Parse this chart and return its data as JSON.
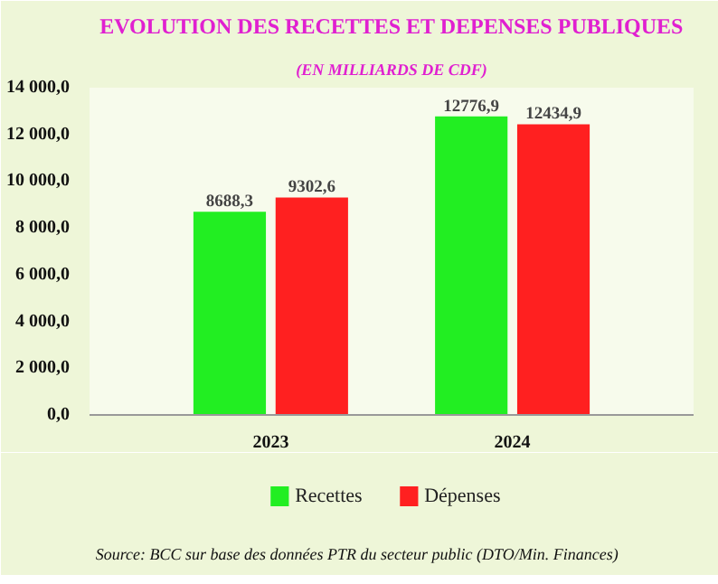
{
  "chart_data": {
    "type": "bar",
    "title": "EVOLUTION DES RECETTES ET DEPENSES PUBLIQUES",
    "subtitle": "(EN MILLIARDS DE CDF)",
    "categories": [
      "2023",
      "2024"
    ],
    "series": [
      {
        "name": "Recettes",
        "color": "#22ee22",
        "values": [
          8688.3,
          12776.9
        ],
        "value_labels": [
          "8688,3",
          "12776,9"
        ]
      },
      {
        "name": "Dépenses",
        "color": "#ff2020",
        "values": [
          9302.6,
          12434.9
        ],
        "value_labels": [
          "9302,6",
          "12434,9"
        ]
      }
    ],
    "ylim": [
      0,
      14000
    ],
    "yticks": [
      {
        "value": 0,
        "label": "0,0"
      },
      {
        "value": 2000,
        "label": "2 000,0"
      },
      {
        "value": 4000,
        "label": "4 000,0"
      },
      {
        "value": 6000,
        "label": "6 000,0"
      },
      {
        "value": 8000,
        "label": "8 000,0"
      },
      {
        "value": 10000,
        "label": "10 000,0"
      },
      {
        "value": 12000,
        "label": "12 000,0"
      },
      {
        "value": 14000,
        "label": "14 000,0"
      }
    ],
    "grid": false,
    "legend": "bottom",
    "annotations": [
      "Source: BCC sur base des données PTR du secteur public (DTO/Min. Finances)"
    ]
  }
}
